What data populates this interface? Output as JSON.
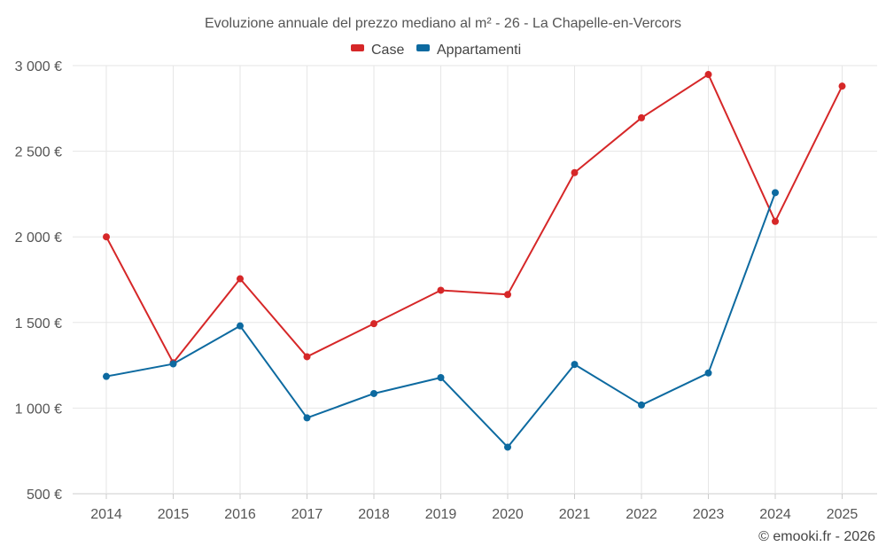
{
  "chart_data": {
    "type": "line",
    "title": "Evoluzione annuale del prezzo mediano al m² - 26 - La Chapelle-en-Vercors",
    "categories": [
      "2014",
      "2015",
      "2016",
      "2017",
      "2018",
      "2019",
      "2020",
      "2021",
      "2022",
      "2023",
      "2024",
      "2025"
    ],
    "series": [
      {
        "name": "Case",
        "color": "#d62728",
        "values": [
          2000,
          1265,
          1755,
          1300,
          1493,
          1688,
          1663,
          2375,
          2695,
          2948,
          2090,
          2880
        ]
      },
      {
        "name": "Appartamenti",
        "color": "#0d6aa0",
        "values": [
          1185,
          1258,
          1480,
          943,
          1085,
          1178,
          772,
          1255,
          1018,
          1205,
          2258,
          null
        ]
      }
    ],
    "ylim": [
      500,
      3000
    ],
    "yticks": [
      500,
      1000,
      1500,
      2000,
      2500,
      3000
    ],
    "ytick_labels": [
      "500 €",
      "1 000 €",
      "1 500 €",
      "2 000 €",
      "2 500 €",
      "3 000 €"
    ],
    "legend_position": "top-center",
    "grid": true
  },
  "footer": "© emooki.fr - 2026"
}
